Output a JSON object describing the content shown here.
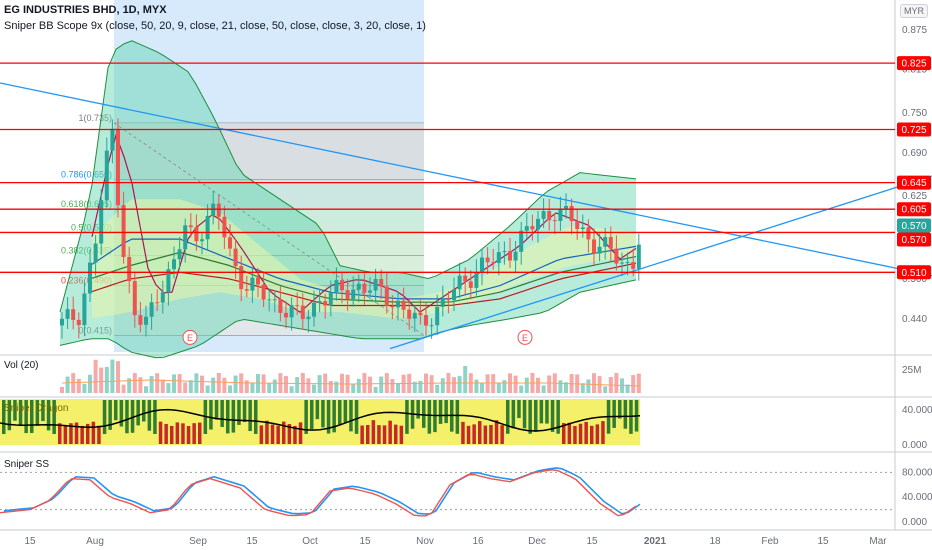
{
  "header": {
    "title": "EG INDUSTRIES BHD, 1D, MYX",
    "indicator": "Sniper BB Scope 9x (close, 50, 20, 9, close, 21, close, 50, close, close, 3, 20, close, 1)"
  },
  "currency": "MYR",
  "panes": {
    "vol_label": "Vol (20)",
    "dragon_label": "Sniper Dragon",
    "ss_label": "Sniper SS"
  },
  "colors": {
    "up": "#26a69a",
    "down": "#ef5350",
    "hline": "#ff0000",
    "trend": "#2196f3",
    "bb_fill": "#5fd4b0",
    "dragon_bg": "#f5f06a"
  },
  "chart_data": [
    {
      "type": "candlestick",
      "x_ticks": [
        "15",
        "Aug",
        "Sep",
        "15",
        "Oct",
        "15",
        "Nov",
        "16",
        "Dec",
        "15",
        "2021",
        "18",
        "Feb",
        "15",
        "Mar"
      ],
      "y_ticks": [
        0.44,
        0.5,
        0.57,
        0.625,
        0.69,
        0.75,
        0.815,
        0.875
      ],
      "ylim": [
        0.39,
        0.92
      ],
      "horizontal_levels": [
        0.825,
        0.725,
        0.645,
        0.605,
        0.57,
        0.51
      ],
      "price_tags": [
        "0.825",
        "0.725",
        "0.645",
        "0.605",
        "0.570",
        "0.570",
        "0.510"
      ],
      "fib_labels": [
        "1(0.735)",
        "0.786(0.650)",
        "0.618(0.605)",
        "0.5(0.570)",
        "0.382(0.535)",
        "0.236(0.490)",
        "0(0.415)"
      ],
      "earnings_markers": [
        "E",
        "E"
      ],
      "last_close": 0.57
    },
    {
      "type": "bar",
      "title": "Vol (20)",
      "y_ticks": [
        "25M"
      ]
    },
    {
      "type": "bar",
      "title": "Sniper Dragon",
      "y_ticks": [
        "40.000",
        "0.000"
      ]
    },
    {
      "type": "line",
      "title": "Sniper SS",
      "y_ticks": [
        "80.000",
        "40.000",
        "0.000"
      ],
      "ylim": [
        0,
        100
      ]
    }
  ]
}
